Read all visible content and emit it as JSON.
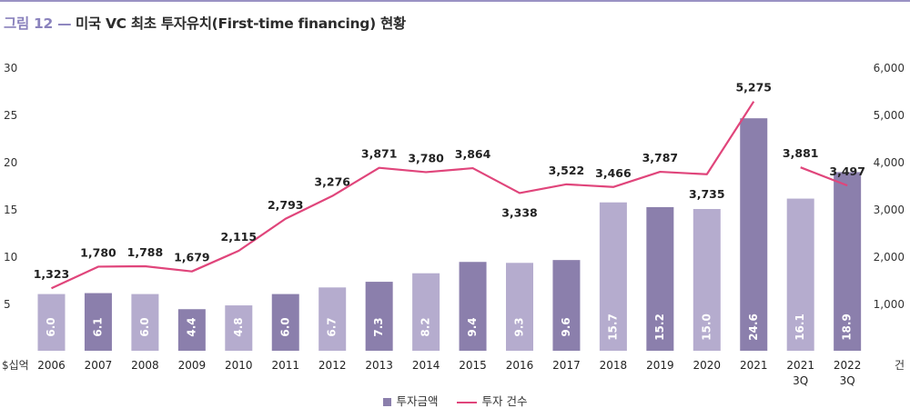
{
  "figure": {
    "number_label": "그림 12 —",
    "title": "미국 VC 최초 투자유치(First-time financing) 현황"
  },
  "colors": {
    "bar_dark": "#8b7fac",
    "bar_light": "#b5acce",
    "line": "#e0457b",
    "accent": "#8a82bd"
  },
  "chart_data": {
    "type": "bar",
    "categories": [
      "2006",
      "2007",
      "2008",
      "2009",
      "2010",
      "2011",
      "2012",
      "2013",
      "2014",
      "2015",
      "2016",
      "2017",
      "2018",
      "2019",
      "2020",
      "2021",
      "2021\n3Q",
      "2022\n3Q"
    ],
    "series": [
      {
        "name": "투자금액",
        "type": "bar",
        "axis": "left",
        "values": [
          6.0,
          6.1,
          6.0,
          4.4,
          4.8,
          6.0,
          6.7,
          7.3,
          8.2,
          9.4,
          9.3,
          9.6,
          15.7,
          15.2,
          15.0,
          24.6,
          16.1,
          18.9
        ],
        "labels": [
          "6.0",
          "6.1",
          "6.0",
          "4.4",
          "4.8",
          "6.0",
          "6.7",
          "7.3",
          "8.2",
          "9.4",
          "9.3",
          "9.6",
          "15.7",
          "15.2",
          "15.0",
          "24.6",
          "16.1",
          "18.9"
        ],
        "shade": [
          "light",
          "dark",
          "light",
          "dark",
          "light",
          "dark",
          "light",
          "dark",
          "light",
          "dark",
          "light",
          "dark",
          "light",
          "dark",
          "light",
          "dark",
          "light",
          "dark"
        ]
      },
      {
        "name": "투자 건수",
        "type": "line",
        "axis": "right",
        "values": [
          1323,
          1780,
          1788,
          1679,
          2115,
          2793,
          3276,
          3871,
          3780,
          3864,
          3338,
          3522,
          3466,
          3787,
          3735,
          5275,
          3881,
          3497
        ],
        "labels": [
          "1,323",
          "1,780",
          "1,788",
          "1,679",
          "2,115",
          "2,793",
          "3,276",
          "3,871",
          "3,780",
          "3,864",
          "3,338",
          "3,522",
          "3,466",
          "3,787",
          "3,735",
          "5,275",
          "3,881",
          "3,497"
        ],
        "label_below": [
          false,
          false,
          false,
          false,
          false,
          false,
          false,
          false,
          false,
          false,
          true,
          false,
          false,
          false,
          true,
          false,
          false,
          false
        ],
        "segment_breaks": [
          16
        ]
      }
    ],
    "y_left": {
      "ylim": [
        0,
        30
      ],
      "ticks": [
        "5",
        "10",
        "15",
        "20",
        "25",
        "30"
      ],
      "tick_values": [
        5,
        10,
        15,
        20,
        25,
        30
      ],
      "unit": "$십억"
    },
    "y_right": {
      "ylim": [
        0,
        6000
      ],
      "ticks": [
        "1,000",
        "2,000",
        "3,000",
        "4,000",
        "5,000",
        "6,000"
      ],
      "tick_values": [
        1000,
        2000,
        3000,
        4000,
        5000,
        6000
      ],
      "unit": "건"
    },
    "grid": false,
    "legend": "bottom-center"
  }
}
